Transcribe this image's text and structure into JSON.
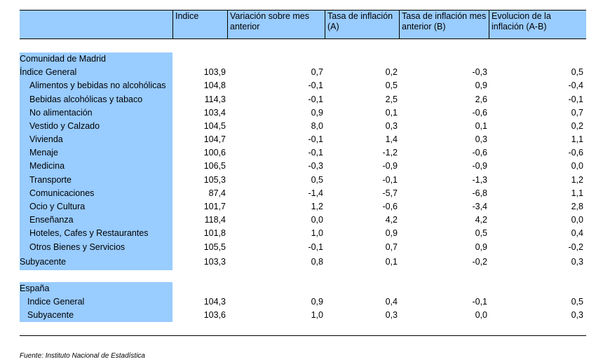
{
  "headers": [
    "",
    "Indice",
    "Variación sobre mes anterior",
    "Tasa de inflación (A)",
    "Tasa de inflación mes anterior (B)",
    "Evolucion de la inflación (A-B)"
  ],
  "madrid": {
    "section_label": "Comunidad de Madrid",
    "general": {
      "label": "Índice General",
      "values": [
        "103,9",
        "0,7",
        "0,2",
        "-0,3",
        "0,5"
      ]
    },
    "items": [
      {
        "label": "Alimentos y bebidas no alcohólicas",
        "values": [
          "104,8",
          "-0,1",
          "0,5",
          "0,9",
          "-0,4"
        ]
      },
      {
        "label": "Bebidas alcohólicas y tabaco",
        "values": [
          "114,3",
          "-0,1",
          "2,5",
          "2,6",
          "-0,1"
        ]
      },
      {
        "label": "No alimentación",
        "values": [
          "103,4",
          "0,9",
          "0,1",
          "-0,6",
          "0,7"
        ]
      },
      {
        "label": "Vestido y Calzado",
        "values": [
          "104,5",
          "8,0",
          "0,3",
          "0,1",
          "0,2"
        ]
      },
      {
        "label": "Vivienda",
        "values": [
          "104,7",
          "-0,1",
          "1,4",
          "0,3",
          "1,1"
        ]
      },
      {
        "label": "Menaje",
        "values": [
          "100,6",
          "-0,1",
          "-1,2",
          "-0,6",
          "-0,6"
        ]
      },
      {
        "label": "Medicina",
        "values": [
          "106,5",
          "-0,3",
          "-0,9",
          "-0,9",
          "0,0"
        ]
      },
      {
        "label": "Transporte",
        "values": [
          "105,3",
          "0,5",
          "-0,1",
          "-1,3",
          "1,2"
        ]
      },
      {
        "label": "Comunicaciones",
        "values": [
          "87,4",
          "-1,4",
          "-5,7",
          "-6,8",
          "1,1"
        ]
      },
      {
        "label": "Ocio y Cultura",
        "values": [
          "101,7",
          "1,2",
          "-0,6",
          "-3,4",
          "2,8"
        ]
      },
      {
        "label": "Enseñanza",
        "values": [
          "118,4",
          "0,0",
          "4,2",
          "4,2",
          "0,0"
        ]
      },
      {
        "label": "Hoteles, Cafes y Restaurantes",
        "values": [
          "101,8",
          "1,0",
          "0,9",
          "0,5",
          "0,4"
        ]
      },
      {
        "label": "Otros Bienes y Servicios",
        "values": [
          "105,5",
          "-0,1",
          "0,7",
          "0,9",
          "-0,2"
        ]
      }
    ],
    "subyacente": {
      "label": "Subyacente",
      "values": [
        "103,3",
        "0,8",
        "0,1",
        "-0,2",
        "0,3"
      ]
    }
  },
  "espana": {
    "section_label": "España",
    "general": {
      "label": "Indice General",
      "values": [
        "104,3",
        "0,9",
        "0,4",
        "-0,1",
        "0,5"
      ]
    },
    "subyacente": {
      "label": "Subyacente",
      "values": [
        "103,6",
        "1,0",
        "0,3",
        "0,0",
        "0,3"
      ]
    }
  },
  "source": "Fuente: Instituto Nacional de Estadística",
  "colors": {
    "header_bg": "#99ccff",
    "label_bg": "#99ccff"
  }
}
